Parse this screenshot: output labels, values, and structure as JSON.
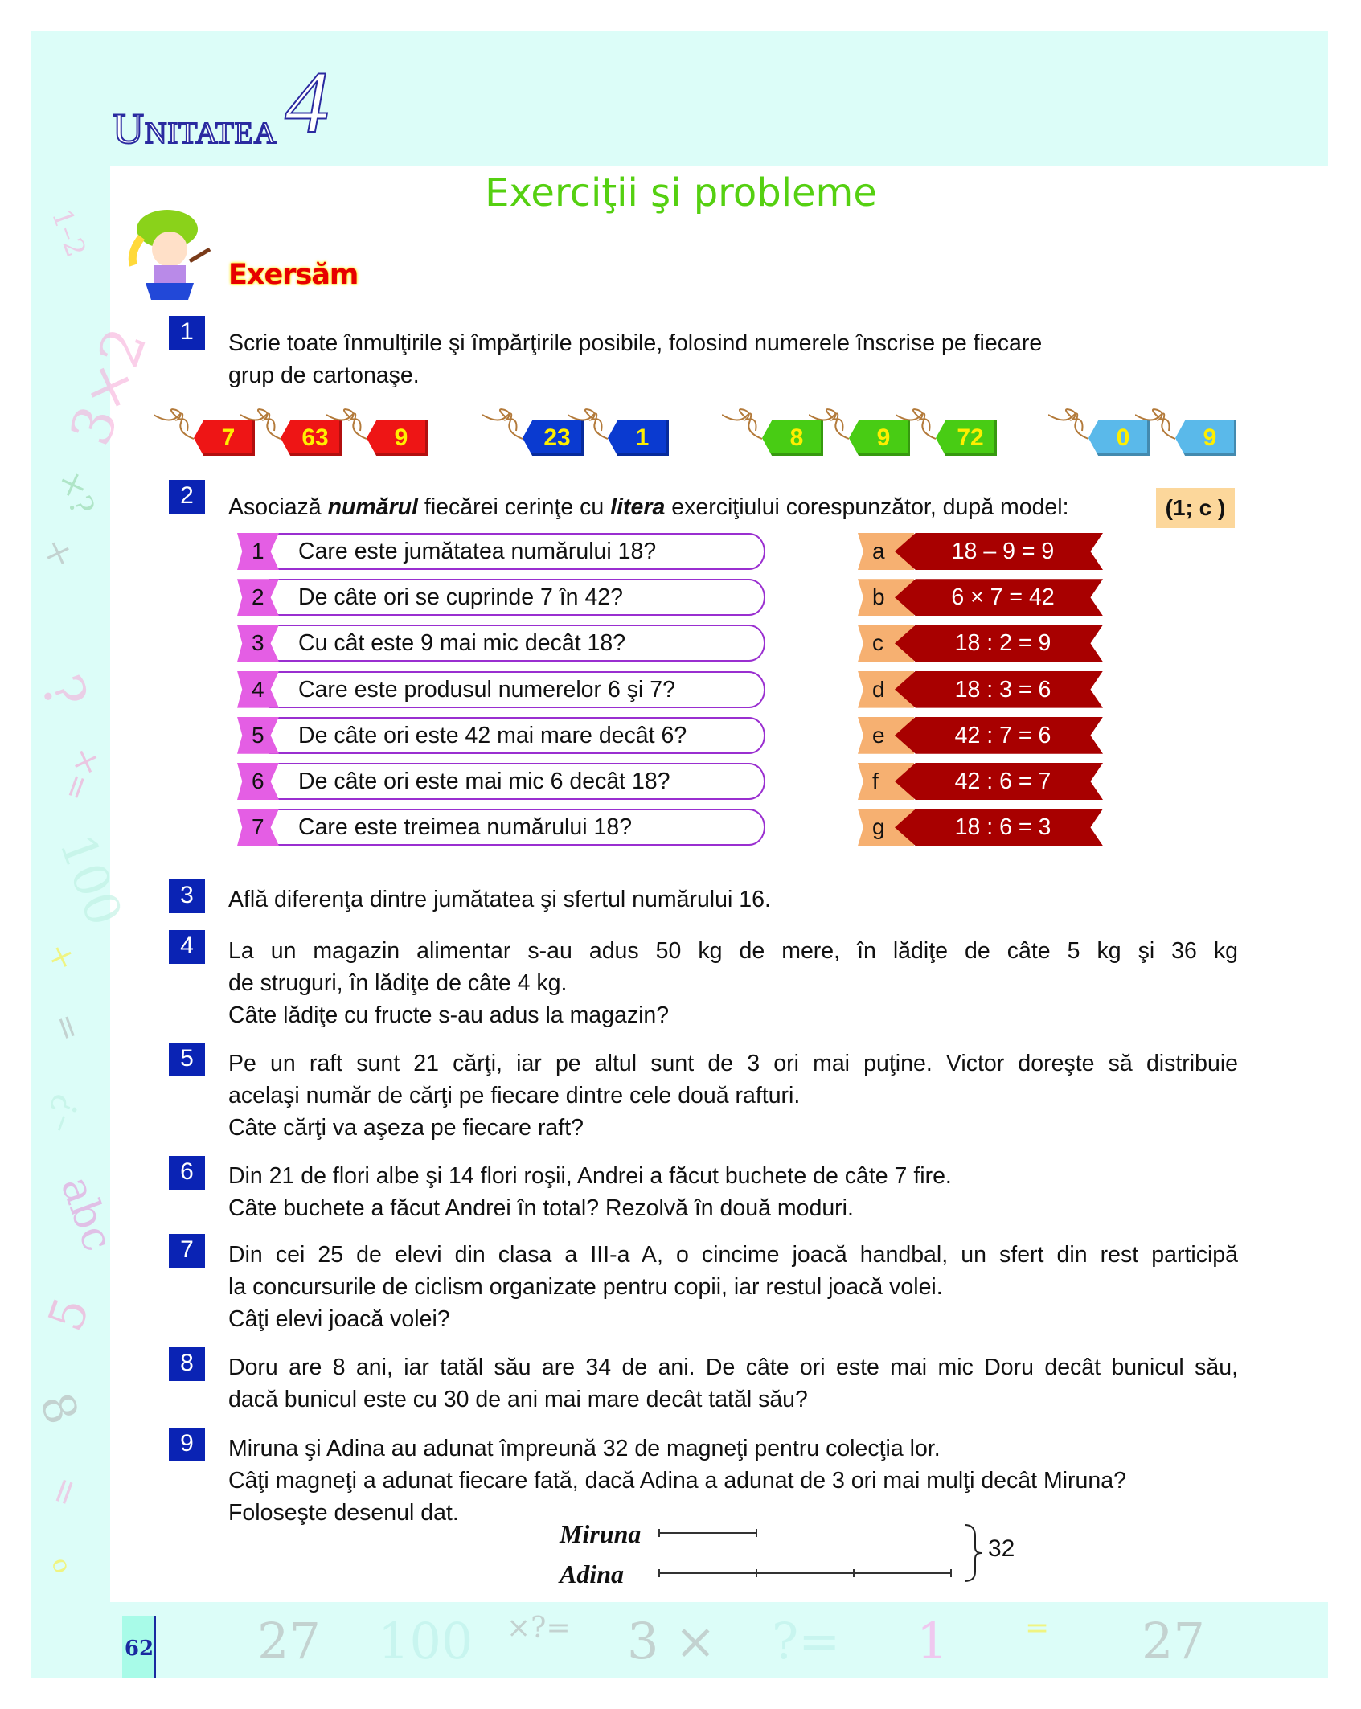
{
  "header": {
    "unit_label": "Unitatea",
    "unit_number": "4"
  },
  "title": "Exerciţii şi probleme",
  "section": "Exersăm",
  "exercises": {
    "e1": {
      "num": "1",
      "lines": [
        "Scrie toate înmulţirile şi împărţirile posibile, folosind numerele înscrise pe fiecare",
        "grup de cartonaşe."
      ]
    },
    "e2": {
      "num": "2",
      "pre": "Asociază ",
      "b1": "numărul",
      "mid": " fiecărei cerinţe cu ",
      "b2": "litera",
      "post": " exerciţiului corespunzător, după model:",
      "model": "(1; c )"
    },
    "e3": {
      "num": "3",
      "lines": [
        "Află diferenţa dintre jumătatea şi sfertul numărului 16."
      ]
    },
    "e4": {
      "num": "4",
      "lines": [
        "La un magazin alimentar s-au adus 50 kg de mere, în lădiţe de câte 5 kg şi 36 kg",
        "de struguri, în lădiţe de câte 4 kg.",
        "Câte lădiţe cu fructe s-au adus la magazin?"
      ]
    },
    "e5": {
      "num": "5",
      "lines": [
        "Pe un raft sunt 21 cărţi, iar pe altul sunt de 3 ori mai puţine. Victor doreşte să distribuie",
        "acelaşi număr de cărţi pe fiecare dintre cele două rafturi.",
        "Câte cărţi va aşeza pe fiecare raft?"
      ]
    },
    "e6": {
      "num": "6",
      "lines": [
        "Din 21 de flori albe şi 14 flori roşii, Andrei a făcut buchete de câte 7 fire.",
        "Câte buchete a făcut Andrei în total? Rezolvă în două moduri."
      ]
    },
    "e7": {
      "num": "7",
      "lines": [
        "Din cei 25 de elevi din clasa a III-a A, o cincime joacă handbal, un sfert din rest participă",
        "la concursurile de ciclism organizate pentru copii, iar restul joacă volei.",
        "Câţi elevi joacă volei?"
      ]
    },
    "e8": {
      "num": "8",
      "lines": [
        "Doru are 8 ani, iar tatăl său are 34 de ani. De câte ori este mai mic Doru decât bunicul său,",
        "dacă bunicul este cu 30 de ani mai mare decât tatăl său?"
      ]
    },
    "e9": {
      "num": "9",
      "lines": [
        "Miruna şi Adina au adunat împreună 32 de magneţi pentru colecţia lor.",
        "Câţi magneţi a adunat fiecare fată, dacă Adina a adunat de 3 ori mai mulţi decât Miruna?",
        "Foloseşte desenul dat."
      ]
    }
  },
  "tag_groups": [
    {
      "color": "#ee1515",
      "values": [
        "7",
        "63",
        "9"
      ]
    },
    {
      "color": "#0a3ad0",
      "values": [
        "23",
        "1"
      ]
    },
    {
      "color": "#48cc14",
      "values": [
        "8",
        "9",
        "72"
      ]
    },
    {
      "color": "#5ab9ea",
      "values": [
        "0",
        "9"
      ]
    }
  ],
  "questions": [
    {
      "n": "1",
      "text": "Care este jumătatea numărului 18?"
    },
    {
      "n": "2",
      "text": "De câte ori se cuprinde 7 în 42?"
    },
    {
      "n": "3",
      "text": "Cu cât este 9 mai mic decât 18?"
    },
    {
      "n": "4",
      "text": "Care este produsul numerelor 6 şi 7?"
    },
    {
      "n": "5",
      "text": "De câte ori este 42 mai mare decât 6?"
    },
    {
      "n": "6",
      "text": "De câte ori este mai mic 6 decât 18?"
    },
    {
      "n": "7",
      "text": "Care este treimea numărului 18?"
    }
  ],
  "answers": [
    {
      "l": "a",
      "expr": "18 – 9 = 9"
    },
    {
      "l": "b",
      "expr": "6 × 7 = 42"
    },
    {
      "l": "c",
      "expr": "18 : 2 = 9"
    },
    {
      "l": "d",
      "expr": "18 : 3 = 6"
    },
    {
      "l": "e",
      "expr": "42 : 7 = 6"
    },
    {
      "l": "f",
      "expr": "42 : 6 = 7"
    },
    {
      "l": "g",
      "expr": "18 : 6 = 3"
    }
  ],
  "diagram": {
    "label1": "Miruna",
    "label2": "Adina",
    "total": "32",
    "miruna_segments": 1,
    "adina_segments": 3
  },
  "side_deco": [
    "1–2",
    "3×2",
    "×?",
    "×",
    "?",
    "=×",
    "100",
    "×",
    "=",
    "–?",
    "abc",
    "5",
    "8",
    "=",
    "o"
  ],
  "footer_deco": [
    "27",
    "100",
    "×?=",
    "3 ×",
    "?=",
    "1",
    "=",
    "27"
  ],
  "page_number": "62"
}
